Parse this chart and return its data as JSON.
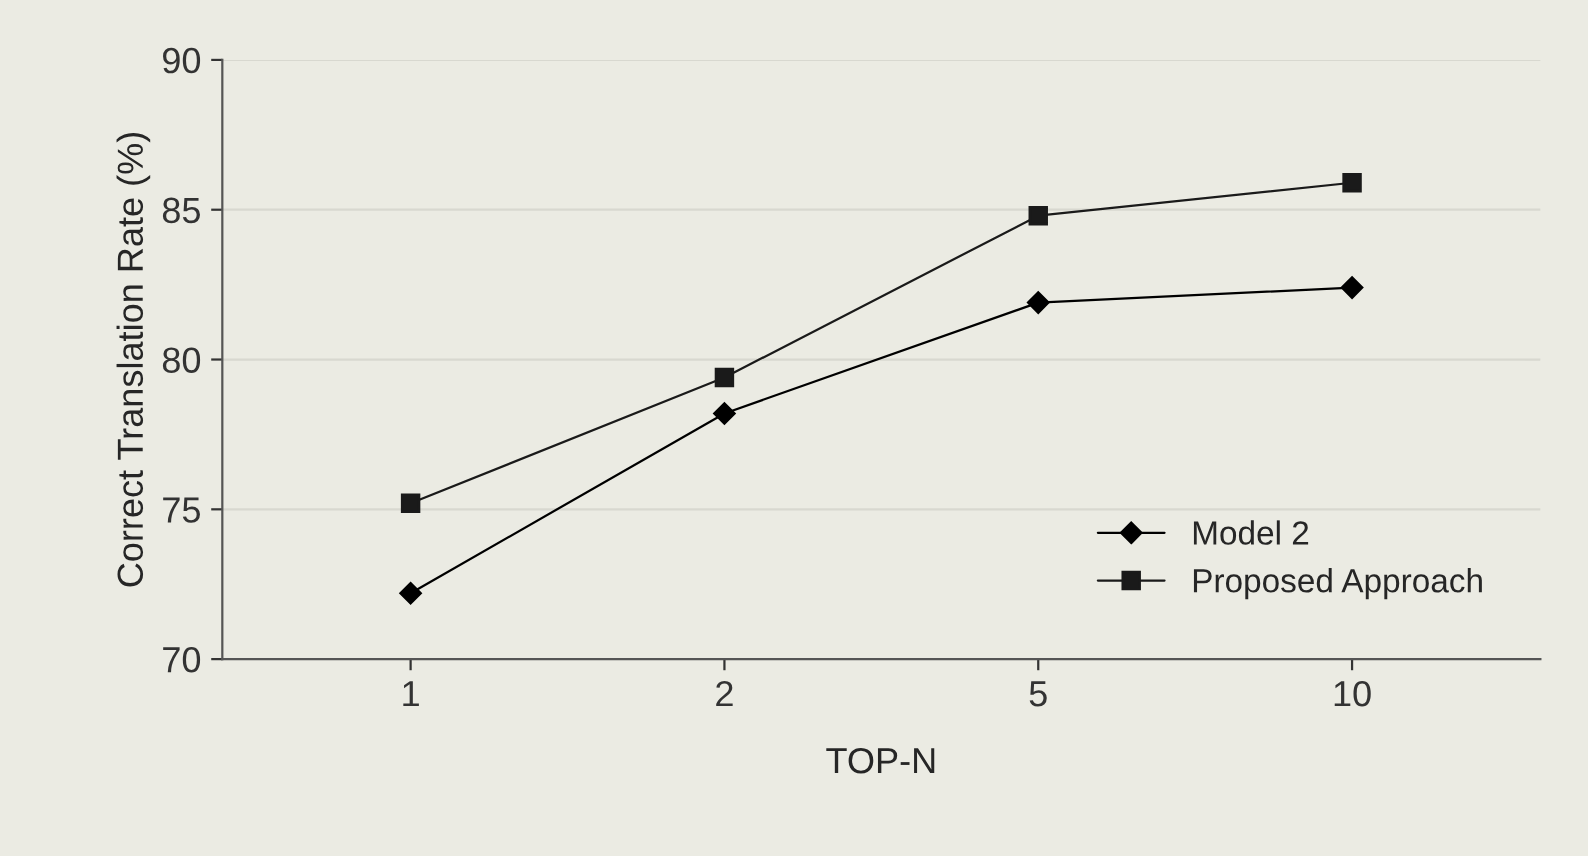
{
  "chart_data": {
    "type": "line",
    "xlabel": "TOP-N",
    "ylabel": "Correct Translation Rate (%)",
    "categories": [
      "1",
      "2",
      "5",
      "10"
    ],
    "series": [
      {
        "name": "Model 2",
        "color": "#000000",
        "marker": "diamond",
        "values": [
          72.2,
          78.2,
          81.9,
          82.4
        ]
      },
      {
        "name": "Proposed Approach",
        "color": "#1a1a1a",
        "marker": "square",
        "values": [
          75.2,
          79.4,
          84.8,
          85.9
        ]
      }
    ],
    "ylim": [
      70,
      90
    ],
    "yticks": [
      70,
      75,
      80,
      85,
      90
    ],
    "grid": "y",
    "legend": "bottom right",
    "line_style": "solid"
  }
}
